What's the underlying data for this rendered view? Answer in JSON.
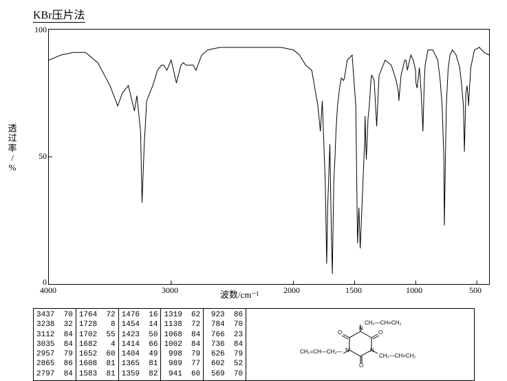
{
  "title": "KBr压片法",
  "chart": {
    "type": "line",
    "xlabel": "波数/cm⁻¹",
    "ylabel": "透过率/%",
    "xlim": [
      4000,
      400
    ],
    "ylim": [
      0,
      100
    ],
    "xtick_labels": [
      "4000",
      "3000",
      "2000",
      "1500",
      "1000",
      "500"
    ],
    "xtick_positions": [
      4000,
      3000,
      2000,
      1500,
      1000,
      500
    ],
    "ytick_labels": [
      "0",
      "50",
      "100"
    ],
    "ytick_positions": [
      0,
      50,
      100
    ],
    "line_color": "#000000",
    "background_color": "#ffffff",
    "title_fontsize": 16,
    "label_fontsize": 13,
    "tick_fontsize": 12,
    "spectrum": [
      [
        4000,
        88
      ],
      [
        3900,
        90
      ],
      [
        3800,
        91
      ],
      [
        3700,
        91
      ],
      [
        3600,
        87
      ],
      [
        3500,
        78
      ],
      [
        3437,
        70
      ],
      [
        3400,
        75
      ],
      [
        3350,
        78
      ],
      [
        3300,
        68
      ],
      [
        3280,
        74
      ],
      [
        3250,
        60
      ],
      [
        3238,
        32
      ],
      [
        3220,
        55
      ],
      [
        3200,
        72
      ],
      [
        3150,
        78
      ],
      [
        3112,
        84
      ],
      [
        3080,
        86
      ],
      [
        3060,
        86
      ],
      [
        3035,
        84
      ],
      [
        3000,
        88
      ],
      [
        2980,
        84
      ],
      [
        2957,
        79
      ],
      [
        2920,
        86
      ],
      [
        2900,
        87
      ],
      [
        2880,
        86
      ],
      [
        2865,
        86
      ],
      [
        2820,
        86
      ],
      [
        2797,
        84
      ],
      [
        2750,
        90
      ],
      [
        2700,
        92
      ],
      [
        2600,
        93
      ],
      [
        2500,
        93
      ],
      [
        2400,
        93
      ],
      [
        2300,
        93
      ],
      [
        2200,
        93
      ],
      [
        2100,
        93
      ],
      [
        2000,
        92
      ],
      [
        1950,
        90
      ],
      [
        1900,
        86
      ],
      [
        1850,
        84
      ],
      [
        1800,
        70
      ],
      [
        1780,
        60
      ],
      [
        1764,
        72
      ],
      [
        1740,
        40
      ],
      [
        1728,
        8
      ],
      [
        1720,
        30
      ],
      [
        1702,
        55
      ],
      [
        1690,
        20
      ],
      [
        1682,
        4
      ],
      [
        1670,
        40
      ],
      [
        1660,
        50
      ],
      [
        1652,
        60
      ],
      [
        1640,
        70
      ],
      [
        1620,
        78
      ],
      [
        1608,
        81
      ],
      [
        1590,
        80
      ],
      [
        1583,
        81
      ],
      [
        1560,
        88
      ],
      [
        1520,
        90
      ],
      [
        1490,
        70
      ],
      [
        1476,
        16
      ],
      [
        1465,
        30
      ],
      [
        1454,
        14
      ],
      [
        1440,
        30
      ],
      [
        1423,
        50
      ],
      [
        1418,
        55
      ],
      [
        1414,
        66
      ],
      [
        1408,
        55
      ],
      [
        1404,
        49
      ],
      [
        1390,
        65
      ],
      [
        1380,
        70
      ],
      [
        1365,
        81
      ],
      [
        1359,
        82
      ],
      [
        1340,
        80
      ],
      [
        1319,
        62
      ],
      [
        1300,
        82
      ],
      [
        1250,
        88
      ],
      [
        1200,
        86
      ],
      [
        1160,
        80
      ],
      [
        1140,
        75
      ],
      [
        1138,
        72
      ],
      [
        1120,
        82
      ],
      [
        1090,
        88
      ],
      [
        1080,
        88
      ],
      [
        1068,
        84
      ],
      [
        1040,
        90
      ],
      [
        1020,
        88
      ],
      [
        1002,
        84
      ],
      [
        998,
        79
      ],
      [
        989,
        77
      ],
      [
        970,
        85
      ],
      [
        955,
        75
      ],
      [
        941,
        60
      ],
      [
        930,
        80
      ],
      [
        923,
        86
      ],
      [
        900,
        92
      ],
      [
        860,
        92
      ],
      [
        820,
        88
      ],
      [
        800,
        80
      ],
      [
        784,
        70
      ],
      [
        770,
        50
      ],
      [
        766,
        23
      ],
      [
        750,
        70
      ],
      [
        740,
        80
      ],
      [
        736,
        84
      ],
      [
        720,
        90
      ],
      [
        700,
        92
      ],
      [
        670,
        90
      ],
      [
        640,
        85
      ],
      [
        626,
        79
      ],
      [
        610,
        70
      ],
      [
        602,
        52
      ],
      [
        590,
        75
      ],
      [
        580,
        78
      ],
      [
        570,
        72
      ],
      [
        569,
        70
      ],
      [
        550,
        85
      ],
      [
        520,
        92
      ],
      [
        480,
        93
      ],
      [
        440,
        91
      ],
      [
        400,
        90
      ]
    ]
  },
  "peaks": [
    [
      [
        3437,
        70
      ],
      [
        3238,
        32
      ],
      [
        3112,
        84
      ],
      [
        3035,
        84
      ],
      [
        2957,
        79
      ],
      [
        2865,
        86
      ],
      [
        2797,
        84
      ]
    ],
    [
      [
        1764,
        72
      ],
      [
        1728,
        8
      ],
      [
        1702,
        55
      ],
      [
        1682,
        4
      ],
      [
        1652,
        60
      ],
      [
        1608,
        81
      ],
      [
        1583,
        81
      ]
    ],
    [
      [
        1476,
        16
      ],
      [
        1454,
        14
      ],
      [
        1423,
        50
      ],
      [
        1414,
        66
      ],
      [
        1404,
        49
      ],
      [
        1365,
        81
      ],
      [
        1359,
        82
      ]
    ],
    [
      [
        1319,
        62
      ],
      [
        1138,
        72
      ],
      [
        1068,
        84
      ],
      [
        1002,
        84
      ],
      [
        998,
        79
      ],
      [
        989,
        77
      ],
      [
        941,
        60
      ]
    ],
    [
      [
        923,
        86
      ],
      [
        784,
        70
      ],
      [
        766,
        23
      ],
      [
        736,
        84
      ],
      [
        626,
        79
      ],
      [
        602,
        52
      ],
      [
        569,
        70
      ]
    ]
  ],
  "molecule": {
    "labels": {
      "top": "CH₂—CH=CH₂",
      "left": "CH₂=CH—CH₂—",
      "bottom": "CH₂—CH=CH₂"
    },
    "atoms": {
      "n": "N",
      "o": "O"
    },
    "colors": {
      "stroke": "#000000",
      "fill": "none"
    }
  }
}
